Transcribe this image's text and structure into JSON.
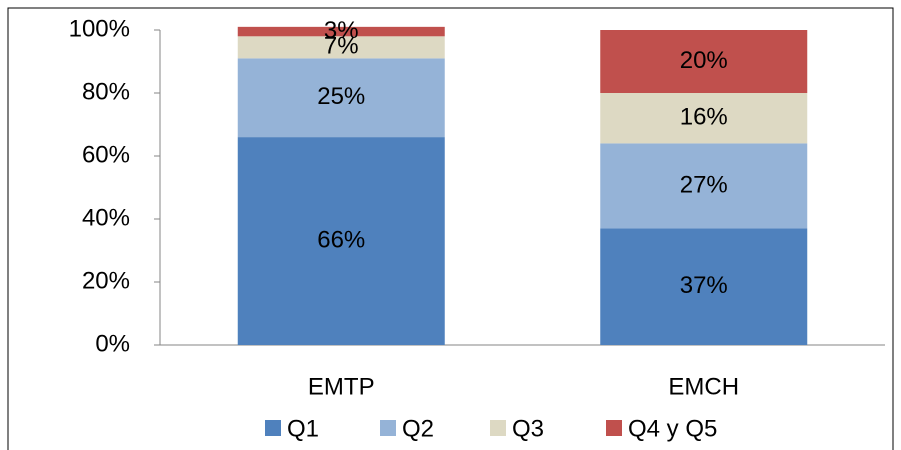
{
  "chart_data": {
    "type": "stacked_bar",
    "categories": [
      "EMTP",
      "EMCH"
    ],
    "series": [
      {
        "name": "Q1",
        "color": "#4f81bd",
        "values": [
          66,
          37
        ],
        "value_labels": [
          "66%",
          "37%"
        ]
      },
      {
        "name": "Q2",
        "color": "#95b3d7",
        "values": [
          25,
          27
        ],
        "value_labels": [
          "25%",
          "27%"
        ]
      },
      {
        "name": "Q3",
        "color": "#ddd9c3",
        "values": [
          7,
          16
        ],
        "value_labels": [
          "7%",
          "16%"
        ]
      },
      {
        "name": "Q4 y Q5",
        "color": "#c0504d",
        "values": [
          3,
          20
        ],
        "value_labels": [
          "3%",
          "20%"
        ]
      }
    ],
    "ylim": [
      0,
      100
    ],
    "yticks": [
      {
        "value": 0,
        "label": "0%"
      },
      {
        "value": 20,
        "label": "20%"
      },
      {
        "value": 40,
        "label": "40%"
      },
      {
        "value": 60,
        "label": "60%"
      },
      {
        "value": 80,
        "label": "80%"
      },
      {
        "value": 100,
        "label": "100%"
      }
    ],
    "legend": "bottom"
  }
}
